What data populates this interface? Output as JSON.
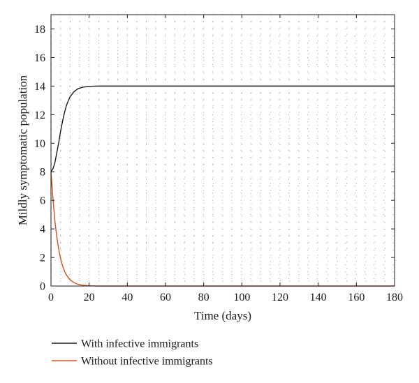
{
  "chart_data": {
    "type": "line",
    "xlabel": "Time (days)",
    "ylabel": "Mildly symptomatic population",
    "xlim": [
      0,
      180
    ],
    "ylim": [
      0,
      19
    ],
    "xticks": [
      0,
      20,
      40,
      60,
      80,
      100,
      120,
      140,
      160,
      180
    ],
    "yticks": [
      0,
      2,
      4,
      6,
      8,
      10,
      12,
      14,
      16,
      18
    ],
    "grid": "dotted",
    "legend_position": "bottom-left",
    "series": [
      {
        "name": "With infective immigrants",
        "color": "#1a1a1a",
        "x": [
          0,
          1,
          2,
          3,
          4,
          5,
          6,
          7,
          8,
          9,
          10,
          12,
          14,
          16,
          18,
          20,
          22,
          25,
          28,
          30,
          35,
          40,
          50,
          60,
          80,
          100,
          120,
          140,
          160,
          180
        ],
        "y": [
          8.0,
          8.2,
          8.6,
          9.3,
          10.0,
          10.8,
          11.5,
          12.1,
          12.6,
          12.95,
          13.25,
          13.6,
          13.8,
          13.9,
          13.95,
          13.97,
          13.99,
          14.0,
          14.0,
          14.0,
          14.0,
          14.0,
          14.0,
          14.0,
          14.0,
          14.0,
          14.0,
          14.0,
          14.0,
          14.0
        ]
      },
      {
        "name": "Without infective immigrants",
        "color": "#d4501e",
        "x": [
          0,
          1,
          2,
          3,
          4,
          5,
          6,
          7,
          8,
          9,
          10,
          12,
          14,
          16,
          18,
          20,
          22,
          25,
          30,
          40,
          60,
          80,
          100,
          120,
          140,
          160,
          180
        ],
        "y": [
          8.0,
          6.2,
          4.6,
          3.5,
          2.6,
          1.95,
          1.45,
          1.08,
          0.8,
          0.6,
          0.44,
          0.24,
          0.13,
          0.07,
          0.04,
          0.02,
          0.01,
          0.0,
          0.0,
          0.0,
          0.0,
          0.0,
          0.0,
          0.0,
          0.0,
          0.0,
          0.0
        ]
      }
    ]
  }
}
